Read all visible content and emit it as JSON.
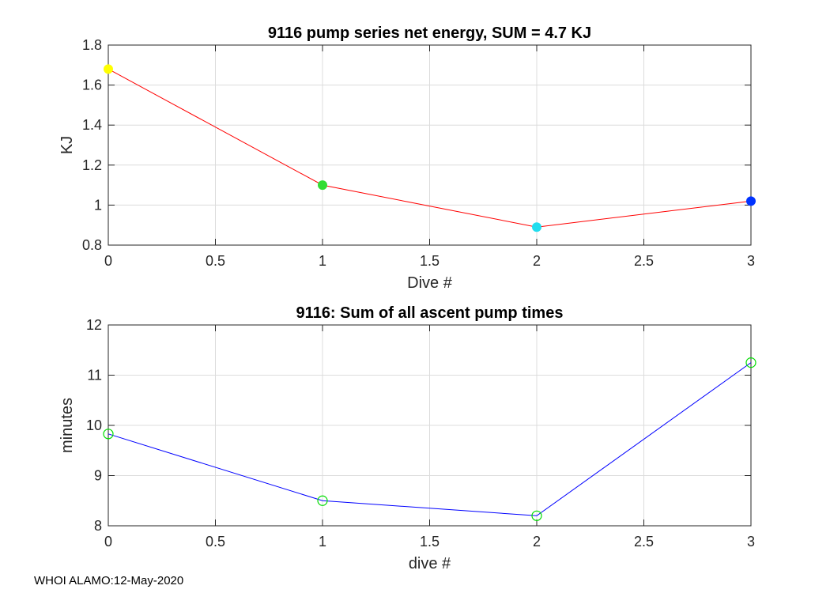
{
  "chart_data": [
    {
      "type": "line",
      "title": "9116 pump series net energy, SUM =   4.7 KJ",
      "xlabel": "Dive #",
      "ylabel": "KJ",
      "xlim": [
        0,
        3
      ],
      "ylim": [
        0.8,
        1.8
      ],
      "xticks": [
        0,
        0.5,
        1,
        1.5,
        2,
        2.5,
        3
      ],
      "xtick_labels": [
        "0",
        "0.5",
        "1",
        "1.5",
        "2",
        "2.5",
        "3"
      ],
      "yticks": [
        0.8,
        1,
        1.2,
        1.4,
        1.6,
        1.8
      ],
      "ytick_labels": [
        "0.8",
        "1",
        "1.2",
        "1.4",
        "1.6",
        "1.8"
      ],
      "grid": true,
      "series": [
        {
          "name": "net energy",
          "x": [
            0,
            1,
            2,
            3
          ],
          "values": [
            1.68,
            1.1,
            0.89,
            1.02
          ],
          "line_color": "#ff0000",
          "marker": "filled-circle",
          "marker_colors": [
            "#ffff00",
            "#33dd33",
            "#22ddee",
            "#0033ff"
          ]
        }
      ]
    },
    {
      "type": "line",
      "title": "9116: Sum of all ascent pump times",
      "xlabel": "dive #",
      "ylabel": "minutes",
      "xlim": [
        0,
        3
      ],
      "ylim": [
        8,
        12
      ],
      "xticks": [
        0,
        0.5,
        1,
        1.5,
        2,
        2.5,
        3
      ],
      "xtick_labels": [
        "0",
        "0.5",
        "1",
        "1.5",
        "2",
        "2.5",
        "3"
      ],
      "yticks": [
        8,
        9,
        10,
        11,
        12
      ],
      "ytick_labels": [
        "8",
        "9",
        "10",
        "11",
        "12"
      ],
      "grid": true,
      "series": [
        {
          "name": "ascent pump time",
          "x": [
            0,
            1,
            2,
            3
          ],
          "values": [
            9.83,
            8.5,
            8.2,
            11.25
          ],
          "line_color": "#0000ff",
          "marker": "open-circle",
          "marker_color": "#00dd00"
        }
      ]
    }
  ],
  "footer": "WHOI ALAMO:12-May-2020"
}
